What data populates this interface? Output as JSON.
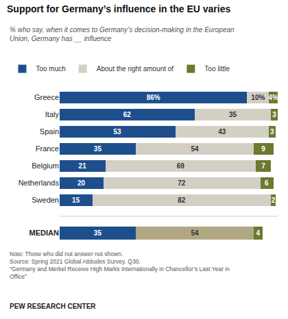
{
  "chart_data": [
    {
      "type": "bar",
      "orientation": "horizontal",
      "stacked": true,
      "data_labels": true,
      "title": "Support for Germany’s influence in the EU varies",
      "subtitle": "% who say, when it comes to Germany’s decision-making in the European\nUnion, Germany has __ influence",
      "annotations": [
        "Note: Those who did not answer not shown.\nSource: Spring 2021 Global Attitudes Survey. Q30.\n“Germany and Merkel Receive High Marks Internationally in Chancellor’s Last Year in\nOffice”",
        "PEW RESEARCH CENTER"
      ],
      "categories": [
        "Greece",
        "Italy",
        "Spain",
        "France",
        "Belgium",
        "Netherlands",
        "Sweden"
      ],
      "series": [
        {
          "name": "Too much",
          "color": "#1e4f8c",
          "values": [
            86,
            62,
            53,
            35,
            21,
            20,
            15
          ],
          "value_labels": [
            "86%",
            "62",
            "53",
            "35",
            "21",
            "20",
            "15"
          ]
        },
        {
          "name": "About the right amount of",
          "color": "#d4cfc4",
          "values": [
            10,
            35,
            43,
            54,
            69,
            72,
            82
          ],
          "value_labels": [
            "10%",
            "35",
            "43",
            "54",
            "69",
            "72",
            "82"
          ]
        },
        {
          "name": "Too little",
          "color": "#6b7a2e",
          "values": [
            4,
            3,
            3,
            9,
            7,
            6,
            2
          ],
          "value_labels": [
            "4%",
            "3",
            "3",
            "9",
            "7",
            "6",
            "2"
          ]
        }
      ],
      "xlim": [
        0,
        100
      ],
      "tick_labels": "y",
      "grid": false,
      "legend": "top"
    },
    {
      "type": "bar",
      "orientation": "horizontal",
      "stacked": true,
      "data_labels": true,
      "categories": [
        "MEDIAN"
      ],
      "series": [
        {
          "color": "#1e4f8c",
          "values": [
            35
          ]
        },
        {
          "color": "#b0a882",
          "values": [
            54
          ]
        },
        {
          "color": "#6b7a2e",
          "values": [
            4
          ]
        }
      ],
      "xlim": [
        0,
        100
      ],
      "tick_labels": "y",
      "grid": false
    }
  ]
}
